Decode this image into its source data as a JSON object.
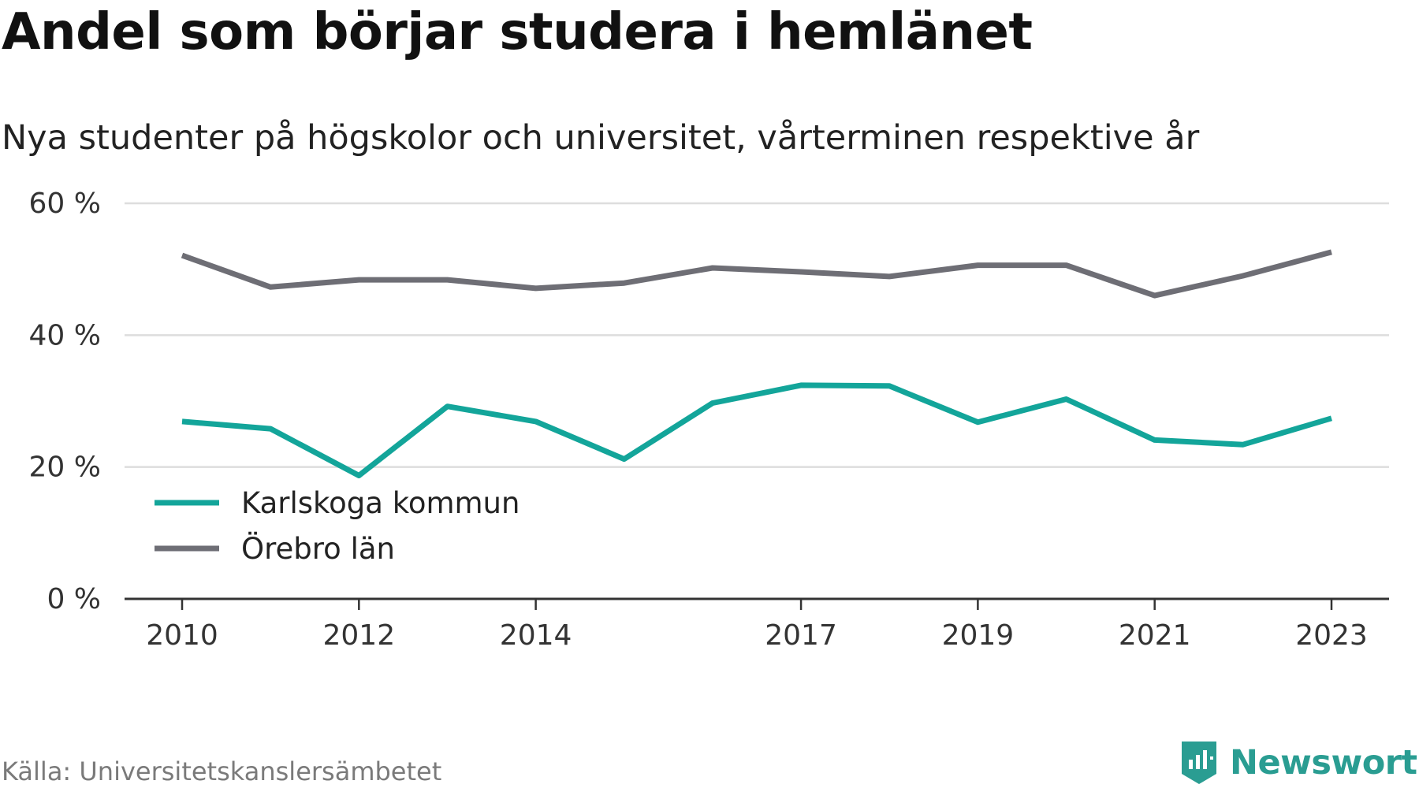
{
  "title": "Andel som börjar studera i hemlänet",
  "subtitle": "Nya studenter på högskolor och universitet, vårterminen respektive år",
  "source": "Källa: Universitetskanslersämbetet",
  "brand": "Newsworthy",
  "colors": {
    "karlskoga": "#13a59a",
    "orebro": "#6e6e75",
    "grid": "#dddddd",
    "axis": "#333333",
    "brand": "#2a9d92"
  },
  "chart_data": {
    "type": "line",
    "x": [
      2010,
      2011,
      2012,
      2013,
      2014,
      2015,
      2016,
      2017,
      2018,
      2019,
      2020,
      2021,
      2022,
      2023
    ],
    "series": [
      {
        "name": "Karlskoga kommun",
        "color": "#13a59a",
        "values": [
          26.9,
          25.8,
          18.7,
          29.2,
          26.9,
          21.2,
          29.7,
          32.4,
          32.3,
          26.8,
          30.3,
          24.1,
          23.4,
          27.4
        ]
      },
      {
        "name": "Örebro län",
        "color": "#6e6e75",
        "values": [
          52.1,
          47.3,
          48.4,
          48.4,
          47.1,
          47.9,
          50.2,
          49.6,
          48.9,
          50.6,
          50.6,
          46.0,
          49.0,
          52.6
        ]
      }
    ],
    "yticks": [
      "0 %",
      "20 %",
      "40 %",
      "60 %"
    ],
    "ytick_values": [
      0,
      20,
      40,
      60
    ],
    "xticks": [
      "2010",
      "2012",
      "2014",
      "2017",
      "2019",
      "2021",
      "2023"
    ],
    "xtick_values": [
      2010,
      2012,
      2014,
      2017,
      2019,
      2021,
      2023
    ],
    "ylim": [
      0,
      60
    ],
    "grid": true,
    "legend_position": "bottom-left"
  }
}
